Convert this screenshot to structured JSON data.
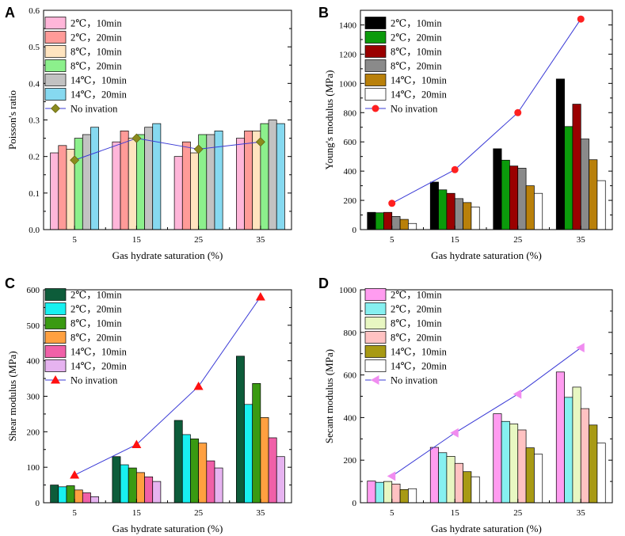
{
  "chart_data": [
    {
      "panel": "A",
      "type": "bar",
      "categories": [
        "5",
        "15",
        "25",
        "35"
      ],
      "xlabel": "Gas hydrate saturation (%)",
      "ylabel": "Poisson's ratio",
      "ylim": [
        0,
        0.6
      ],
      "yticks": [
        "0.0",
        "0.1",
        "0.2",
        "0.3",
        "0.4",
        "0.5",
        "0.6"
      ],
      "series": [
        {
          "name": "2℃，10min",
          "color": "#ffb6d9",
          "values": [
            0.21,
            0.24,
            0.2,
            0.25
          ]
        },
        {
          "name": "2℃，20min",
          "color": "#ff9b98",
          "values": [
            0.23,
            0.27,
            0.24,
            0.27
          ]
        },
        {
          "name": "8℃，10min",
          "color": "#ffe4bf",
          "values": [
            0.22,
            0.25,
            0.21,
            0.27
          ]
        },
        {
          "name": "8℃，20min",
          "color": "#8cf08c",
          "values": [
            0.25,
            0.26,
            0.26,
            0.29
          ]
        },
        {
          "name": "14℃，10min",
          "color": "#c2c2c2",
          "values": [
            0.26,
            0.28,
            0.26,
            0.3
          ]
        },
        {
          "name": "14℃，20min",
          "color": "#86d9f0",
          "values": [
            0.28,
            0.29,
            0.27,
            0.29
          ]
        }
      ],
      "line": {
        "name": "No invation",
        "color": "#3b3bd6",
        "marker": "diamond",
        "marker_color": "#8b8b1e",
        "values": [
          0.19,
          0.25,
          0.22,
          0.24
        ]
      }
    },
    {
      "panel": "B",
      "type": "bar",
      "categories": [
        "5",
        "15",
        "25",
        "35"
      ],
      "xlabel": "Gas hydrate saturation (%)",
      "ylabel": "Young's modulus (MPa)",
      "ylim": [
        0,
        1500
      ],
      "yticks": [
        "0",
        "200",
        "400",
        "600",
        "800",
        "1000",
        "1200",
        "1400"
      ],
      "series": [
        {
          "name": "2℃，10min",
          "color": "#000000",
          "values": [
            118,
            325,
            553,
            1030
          ]
        },
        {
          "name": "2℃，20min",
          "color": "#0b9a0b",
          "values": [
            115,
            272,
            475,
            705
          ]
        },
        {
          "name": "8℃，10min",
          "color": "#9a0000",
          "values": [
            118,
            248,
            435,
            858
          ]
        },
        {
          "name": "8℃，20min",
          "color": "#8a8a8a",
          "values": [
            90,
            212,
            420,
            620
          ]
        },
        {
          "name": "14℃，10min",
          "color": "#b9800a",
          "values": [
            70,
            185,
            300,
            478
          ]
        },
        {
          "name": "14℃，20min",
          "color": "#ffffff",
          "values": [
            42,
            155,
            248,
            335
          ]
        }
      ],
      "line": {
        "name": "No invation",
        "color": "#3b3bd6",
        "marker": "circle",
        "marker_color": "#ff2020",
        "values": [
          180,
          410,
          800,
          1440
        ]
      }
    },
    {
      "panel": "C",
      "type": "bar",
      "categories": [
        "5",
        "15",
        "25",
        "35"
      ],
      "xlabel": "Gas hydrate saturation (%)",
      "ylabel": "Shear modulus (MPa)",
      "ylim": [
        0,
        600
      ],
      "yticks": [
        "0",
        "100",
        "200",
        "300",
        "400",
        "500",
        "600"
      ],
      "series": [
        {
          "name": "2℃，10min",
          "color": "#0d5c3a",
          "values": [
            50,
            130,
            232,
            413
          ]
        },
        {
          "name": "2℃，20min",
          "color": "#18f0f0",
          "values": [
            45,
            107,
            192,
            277
          ]
        },
        {
          "name": "8℃，10min",
          "color": "#3a9a12",
          "values": [
            48,
            98,
            180,
            336
          ]
        },
        {
          "name": "8℃，20min",
          "color": "#ffa040",
          "values": [
            36,
            85,
            168,
            240
          ]
        },
        {
          "name": "14℃，10min",
          "color": "#f060a8",
          "values": [
            28,
            73,
            118,
            183
          ]
        },
        {
          "name": "14℃，20min",
          "color": "#e6b3f0",
          "values": [
            17,
            60,
            98,
            130
          ]
        }
      ],
      "line": {
        "name": "No invation",
        "color": "#3b3bd6",
        "marker": "triangle-up",
        "marker_color": "#ff1010",
        "values": [
          78,
          164,
          328,
          580
        ]
      }
    },
    {
      "panel": "D",
      "type": "bar",
      "categories": [
        "5",
        "15",
        "25",
        "35"
      ],
      "xlabel": "Gas hydrate saturation (%)",
      "ylabel": "Secant modulus (MPa)",
      "ylim": [
        0,
        1000
      ],
      "yticks": [
        "0",
        "200",
        "400",
        "600",
        "800",
        "1000"
      ],
      "series": [
        {
          "name": "2℃，10min",
          "color": "#ff9cf0",
          "values": [
            102,
            260,
            418,
            614
          ]
        },
        {
          "name": "2℃，20min",
          "color": "#86f0f0",
          "values": [
            96,
            235,
            382,
            495
          ]
        },
        {
          "name": "8℃，10min",
          "color": "#e8f7c2",
          "values": [
            100,
            218,
            370,
            543
          ]
        },
        {
          "name": "8℃，20min",
          "color": "#ffc2c2",
          "values": [
            88,
            185,
            342,
            442
          ]
        },
        {
          "name": "14℃，10min",
          "color": "#a89a14",
          "values": [
            62,
            146,
            258,
            365
          ]
        },
        {
          "name": "14℃，20min",
          "color": "#ffffff",
          "values": [
            66,
            122,
            228,
            280
          ]
        }
      ],
      "line": {
        "name": "No invation",
        "color": "#3b3bd6",
        "marker": "triangle-left",
        "marker_color": "#f08cf0",
        "values": [
          125,
          328,
          510,
          728
        ]
      }
    }
  ]
}
